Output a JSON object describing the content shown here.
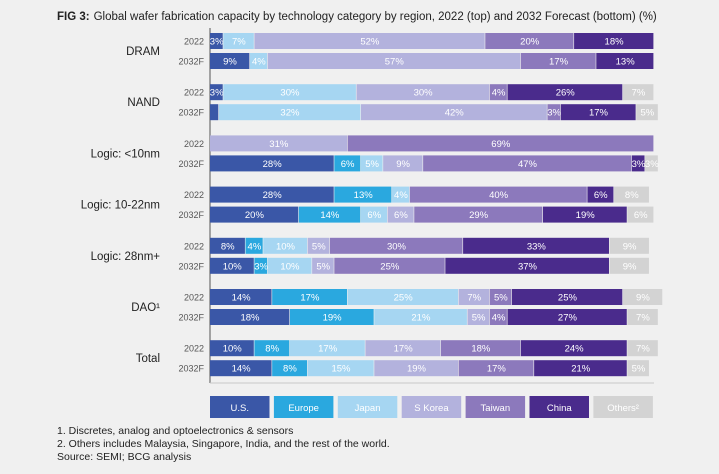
{
  "title_prefix": "FIG 3:",
  "title": "Global wafer fabrication capacity by technology category by region, 2022 (top) and 2032 Forecast (bottom) (%)",
  "colors": {
    "U.S.": "#3a57a7",
    "Europe": "#2aa8df",
    "Japan": "#a6d6f2",
    "S Korea": "#b3b2dd",
    "Taiwan": "#8c79bc",
    "China": "#4a2b8c",
    "Others²": "#d3d3d3"
  },
  "chart_data": {
    "type": "bar",
    "orientation": "horizontal-stacked-100",
    "series": [
      "U.S.",
      "Europe",
      "Japan",
      "S Korea",
      "Taiwan",
      "China",
      "Others²"
    ],
    "groups": [
      {
        "label": "DRAM",
        "rows": [
          {
            "year": "2022",
            "segments": [
              {
                "s": 0,
                "v": 3,
                "label": "3%"
              },
              {
                "s": 2,
                "v": 7,
                "label": "7%"
              },
              {
                "s": 3,
                "v": 52,
                "label": "52%"
              },
              {
                "s": 4,
                "v": 20,
                "label": "20%"
              },
              {
                "s": 5,
                "v": 18,
                "label": "18%"
              }
            ]
          },
          {
            "year": "2032F",
            "segments": [
              {
                "s": 0,
                "v": 9,
                "label": "9%"
              },
              {
                "s": 2,
                "v": 4,
                "label": "4%"
              },
              {
                "s": 3,
                "v": 57,
                "label": "57%"
              },
              {
                "s": 4,
                "v": 17,
                "label": "17%"
              },
              {
                "s": 5,
                "v": 13,
                "label": "13%"
              }
            ]
          }
        ]
      },
      {
        "label": "NAND",
        "rows": [
          {
            "year": "2022",
            "segments": [
              {
                "s": 0,
                "v": 3,
                "label": "3%"
              },
              {
                "s": 2,
                "v": 30,
                "label": "30%"
              },
              {
                "s": 3,
                "v": 30,
                "label": "30%"
              },
              {
                "s": 4,
                "v": 4,
                "label": "4%"
              },
              {
                "s": 5,
                "v": 26,
                "label": "26%"
              },
              {
                "s": 6,
                "v": 7,
                "label": "7%"
              }
            ]
          },
          {
            "year": "2032F",
            "segments": [
              {
                "s": 0,
                "v": 2,
                "label": ""
              },
              {
                "s": 2,
                "v": 32,
                "label": "32%"
              },
              {
                "s": 3,
                "v": 42,
                "label": "42%"
              },
              {
                "s": 4,
                "v": 3,
                "label": "3%"
              },
              {
                "s": 5,
                "v": 17,
                "label": "17%"
              },
              {
                "s": 6,
                "v": 5,
                "label": "5%"
              }
            ]
          }
        ]
      },
      {
        "label": "Logic: <10nm",
        "rows": [
          {
            "year": "2022",
            "segments": [
              {
                "s": 3,
                "v": 31,
                "label": "31%"
              },
              {
                "s": 4,
                "v": 69,
                "label": "69%"
              }
            ]
          },
          {
            "year": "2032F",
            "segments": [
              {
                "s": 0,
                "v": 28,
                "label": "28%"
              },
              {
                "s": 1,
                "v": 6,
                "label": "6%"
              },
              {
                "s": 2,
                "v": 5,
                "label": "5%"
              },
              {
                "s": 3,
                "v": 9,
                "label": "9%"
              },
              {
                "s": 4,
                "v": 47,
                "label": "47%"
              },
              {
                "s": 5,
                "v": 3,
                "label": "3%"
              },
              {
                "s": 6,
                "v": 3,
                "label": "3%"
              }
            ]
          }
        ]
      },
      {
        "label": "Logic: 10-22nm",
        "rows": [
          {
            "year": "2022",
            "segments": [
              {
                "s": 0,
                "v": 28,
                "label": "28%"
              },
              {
                "s": 1,
                "v": 13,
                "label": "13%"
              },
              {
                "s": 2,
                "v": 4,
                "label": "4%"
              },
              {
                "s": 4,
                "v": 40,
                "label": "40%"
              },
              {
                "s": 5,
                "v": 6,
                "label": "6%"
              },
              {
                "s": 6,
                "v": 8,
                "label": "8%"
              }
            ]
          },
          {
            "year": "2032F",
            "segments": [
              {
                "s": 0,
                "v": 20,
                "label": "20%"
              },
              {
                "s": 1,
                "v": 14,
                "label": "14%"
              },
              {
                "s": 2,
                "v": 6,
                "label": "6%"
              },
              {
                "s": 3,
                "v": 6,
                "label": "6%"
              },
              {
                "s": 4,
                "v": 29,
                "label": "29%"
              },
              {
                "s": 5,
                "v": 19,
                "label": "19%"
              },
              {
                "s": 6,
                "v": 6,
                "label": "6%"
              }
            ]
          }
        ]
      },
      {
        "label": "Logic: 28nm+",
        "rows": [
          {
            "year": "2022",
            "segments": [
              {
                "s": 0,
                "v": 8,
                "label": "8%"
              },
              {
                "s": 1,
                "v": 4,
                "label": "4%"
              },
              {
                "s": 2,
                "v": 10,
                "label": "10%"
              },
              {
                "s": 3,
                "v": 5,
                "label": "5%"
              },
              {
                "s": 4,
                "v": 30,
                "label": "30%"
              },
              {
                "s": 5,
                "v": 33,
                "label": "33%"
              },
              {
                "s": 6,
                "v": 9,
                "label": "9%"
              }
            ]
          },
          {
            "year": "2032F",
            "segments": [
              {
                "s": 0,
                "v": 10,
                "label": "10%"
              },
              {
                "s": 1,
                "v": 3,
                "label": "3%"
              },
              {
                "s": 2,
                "v": 10,
                "label": "10%"
              },
              {
                "s": 3,
                "v": 5,
                "label": "5%"
              },
              {
                "s": 4,
                "v": 25,
                "label": "25%"
              },
              {
                "s": 5,
                "v": 37,
                "label": "37%"
              },
              {
                "s": 6,
                "v": 9,
                "label": "9%"
              }
            ]
          }
        ]
      },
      {
        "label": "DAO¹",
        "rows": [
          {
            "year": "2022",
            "segments": [
              {
                "s": 0,
                "v": 14,
                "label": "14%"
              },
              {
                "s": 1,
                "v": 17,
                "label": "17%"
              },
              {
                "s": 2,
                "v": 25,
                "label": "25%"
              },
              {
                "s": 3,
                "v": 7,
                "label": "7%"
              },
              {
                "s": 4,
                "v": 5,
                "label": "5%"
              },
              {
                "s": 5,
                "v": 25,
                "label": "25%"
              },
              {
                "s": 6,
                "v": 9,
                "label": "9%"
              }
            ]
          },
          {
            "year": "2032F",
            "segments": [
              {
                "s": 0,
                "v": 18,
                "label": "18%"
              },
              {
                "s": 1,
                "v": 19,
                "label": "19%"
              },
              {
                "s": 2,
                "v": 21,
                "label": "21%"
              },
              {
                "s": 3,
                "v": 5,
                "label": "5%"
              },
              {
                "s": 4,
                "v": 4,
                "label": "4%"
              },
              {
                "s": 5,
                "v": 27,
                "label": "27%"
              },
              {
                "s": 6,
                "v": 7,
                "label": "7%"
              }
            ]
          }
        ]
      },
      {
        "label": "Total",
        "rows": [
          {
            "year": "2022",
            "segments": [
              {
                "s": 0,
                "v": 10,
                "label": "10%"
              },
              {
                "s": 1,
                "v": 8,
                "label": "8%"
              },
              {
                "s": 2,
                "v": 17,
                "label": "17%"
              },
              {
                "s": 3,
                "v": 17,
                "label": "17%"
              },
              {
                "s": 4,
                "v": 18,
                "label": "18%"
              },
              {
                "s": 5,
                "v": 24,
                "label": "24%"
              },
              {
                "s": 6,
                "v": 7,
                "label": "7%"
              }
            ]
          },
          {
            "year": "2032F",
            "segments": [
              {
                "s": 0,
                "v": 14,
                "label": "14%"
              },
              {
                "s": 1,
                "v": 8,
                "label": "8%"
              },
              {
                "s": 2,
                "v": 15,
                "label": "15%"
              },
              {
                "s": 3,
                "v": 19,
                "label": "19%"
              },
              {
                "s": 4,
                "v": 17,
                "label": "17%"
              },
              {
                "s": 5,
                "v": 21,
                "label": "21%"
              },
              {
                "s": 6,
                "v": 5,
                "label": "5%"
              }
            ]
          }
        ]
      }
    ],
    "legend": [
      "U.S.",
      "Europe",
      "Japan",
      "S Korea",
      "Taiwan",
      "China",
      "Others²"
    ],
    "legend_position": "bottom"
  },
  "notes": [
    "1. Discretes, analog and optoelectronics & sensors",
    "2. Others includes Malaysia, Singapore, India, and the rest of the world.",
    "Source: SEMI; BCG analysis"
  ]
}
